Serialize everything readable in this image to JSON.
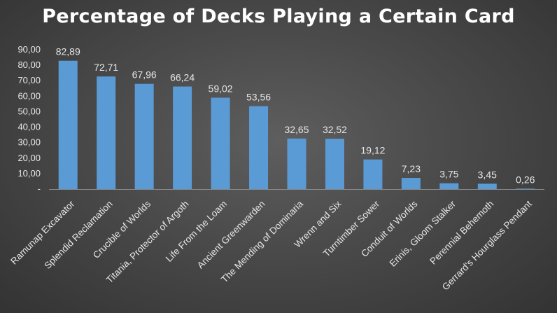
{
  "chart_data": {
    "type": "bar",
    "title": "Percentage of Decks Playing a Certain Card",
    "xlabel": "",
    "ylabel": "",
    "ylim": [
      0,
      90
    ],
    "yticks": [
      0,
      10,
      20,
      30,
      40,
      50,
      60,
      70,
      80,
      90
    ],
    "ytick_labels": [
      "-",
      "10,00",
      "20,00",
      "30,00",
      "40,00",
      "50,00",
      "60,00",
      "70,00",
      "80,00",
      "90,00"
    ],
    "categories": [
      "Ramunap Excavator",
      "Splendid Reclamation",
      "Crucible of Worlds",
      "Titania, Protector of Argoth",
      "Life From the Loam",
      "Ancient Greenwarden",
      "The Mending of Dominaria",
      "Wrenn and Six",
      "Turntimber Sower",
      "Conduit of Worlds",
      "Erinis, Gloom Stalker",
      "Perennial Behemoth",
      "Gerrard's Hourglass Pendant"
    ],
    "values": [
      82.89,
      72.71,
      67.96,
      66.24,
      59.02,
      53.56,
      32.65,
      32.52,
      19.12,
      7.23,
      3.75,
      3.45,
      0.26
    ],
    "data_labels": [
      "82,89",
      "72,71",
      "67,96",
      "66,24",
      "59,02",
      "53,56",
      "32,65",
      "32,52",
      "19,12",
      "7,23",
      "3,75",
      "3,45",
      "0,26"
    ],
    "grid": false,
    "legend": "none",
    "colors": {
      "bar": "#5b9bd5",
      "text": "#e6e6e6",
      "title": "#ffffff"
    }
  }
}
